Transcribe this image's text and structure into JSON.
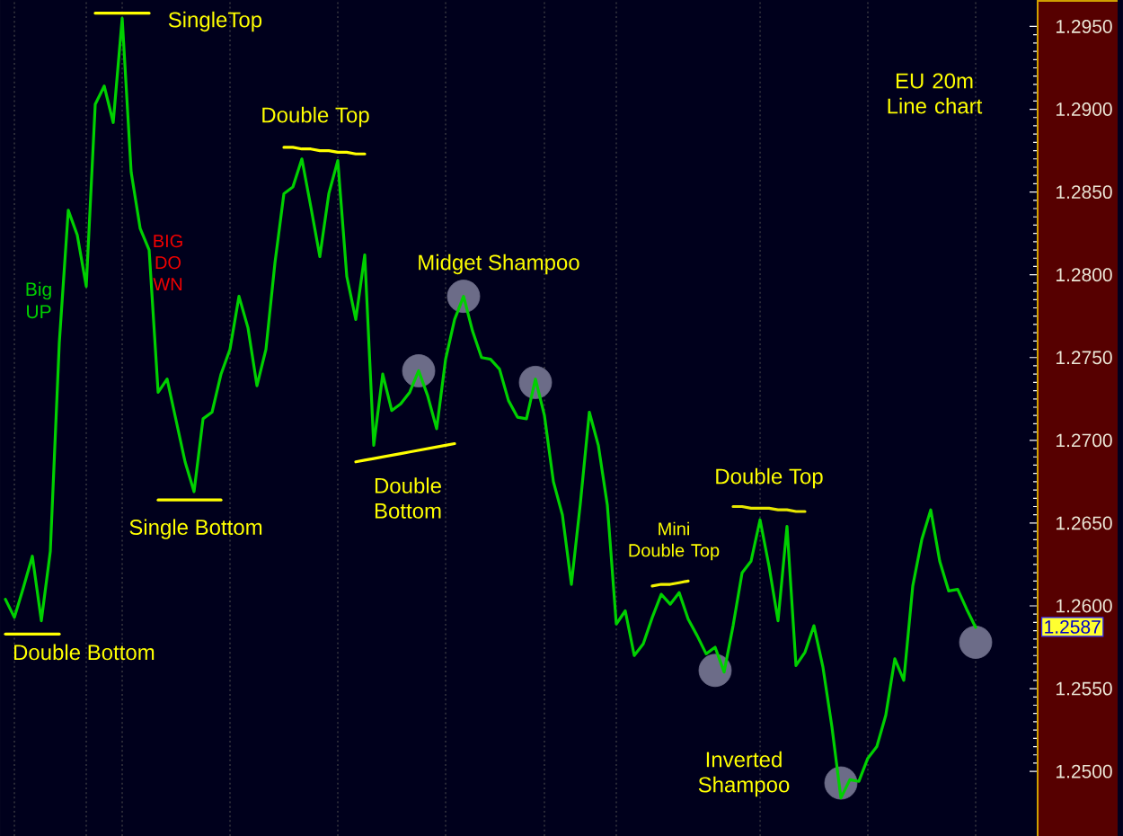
{
  "chart_data": {
    "type": "line",
    "title": "EU 20m Line chart",
    "grid": "x",
    "categories": [
      null,
      null,
      null,
      null,
      null,
      null,
      null,
      null,
      null,
      null,
      null,
      null,
      null,
      null,
      null,
      null,
      null,
      null,
      null,
      null,
      null,
      null,
      null,
      null,
      null,
      null,
      null,
      null,
      null,
      null,
      null,
      null,
      null,
      null,
      null,
      null,
      null,
      null,
      null,
      null,
      null,
      null,
      null,
      null,
      null,
      null,
      null,
      null,
      null,
      null,
      null,
      null,
      null,
      null,
      null,
      null,
      null,
      null,
      null,
      null,
      null,
      null,
      null,
      null,
      null,
      null,
      null,
      null,
      null,
      null,
      null,
      null,
      null,
      null,
      null,
      null,
      null,
      null,
      null,
      null,
      null,
      null,
      null,
      null,
      null,
      null,
      null,
      null,
      null,
      null,
      null,
      null,
      null,
      null,
      null,
      null,
      null,
      null,
      null,
      null,
      null,
      null,
      null,
      null,
      null,
      null,
      null,
      null,
      null
    ],
    "series": [
      {
        "type": "scatter",
        "marker": "circle",
        "color": "#6c6c88",
        "values": [
          null,
          null,
          null,
          null,
          null,
          null,
          null,
          null,
          null,
          null,
          null,
          null,
          null,
          null,
          null,
          null,
          null,
          null,
          null,
          null,
          null,
          null,
          null,
          null,
          null,
          null,
          null,
          null,
          null,
          null,
          null,
          null,
          null,
          null,
          null,
          null,
          null,
          null,
          null,
          null,
          null,
          null,
          null,
          null,
          null,
          null,
          1.2742,
          null,
          null,
          null,
          null,
          1.2787,
          null,
          null,
          null,
          null,
          null,
          null,
          null,
          1.2735,
          null,
          null,
          null,
          null,
          null,
          null,
          null,
          null,
          null,
          null,
          null,
          null,
          null,
          null,
          null,
          null,
          null,
          null,
          null,
          1.2561,
          null,
          null,
          null,
          null,
          null,
          null,
          null,
          null,
          null,
          null,
          null,
          null,
          null,
          1.2493,
          null,
          null,
          null,
          null,
          null,
          null,
          null,
          null,
          null,
          null,
          null,
          null,
          null,
          null,
          1.2578
        ]
      },
      {
        "color": "#00d000",
        "values": [
          1.2604,
          1.2593,
          1.2611,
          1.263,
          1.2591,
          1.2633,
          1.2759,
          1.2839,
          1.2824,
          1.2793,
          1.2903,
          1.2914,
          1.2892,
          1.2955,
          1.2862,
          1.2828,
          1.2815,
          1.2729,
          1.2737,
          1.2712,
          1.2687,
          1.2669,
          1.2713,
          1.2717,
          1.274,
          1.2755,
          1.2787,
          1.2768,
          1.2733,
          1.2755,
          1.2807,
          1.2849,
          1.2853,
          1.287,
          1.2841,
          1.2811,
          1.2849,
          1.2869,
          1.2799,
          1.2773,
          1.2812,
          1.2697,
          1.274,
          1.2718,
          1.2722,
          1.2729,
          1.2742,
          1.2727,
          1.2707,
          1.2749,
          1.2773,
          1.2787,
          1.2766,
          1.275,
          1.2749,
          1.2743,
          1.2724,
          1.2714,
          1.2713,
          1.2737,
          1.2715,
          1.2675,
          1.2655,
          1.2613,
          1.2662,
          1.2717,
          1.2697,
          1.2661,
          1.2589,
          1.2597,
          1.257,
          1.2577,
          1.2593,
          1.2607,
          1.2601,
          1.2608,
          1.2592,
          1.2582,
          1.2571,
          1.2575,
          1.256,
          1.2588,
          1.262,
          1.2627,
          1.2652,
          1.2624,
          1.2591,
          1.2648,
          1.2564,
          1.2572,
          1.2588,
          1.2563,
          1.2527,
          1.2484,
          1.2495,
          1.2494,
          1.2508,
          1.2515,
          1.2534,
          1.2568,
          1.2555,
          1.2612,
          1.264,
          1.2658,
          1.2627,
          1.2609,
          1.261,
          1.2598,
          1.2587
        ]
      },
      {
        "color": "#ffff00",
        "values": [
          1.2583,
          1.2583,
          1.2583,
          1.2583,
          1.2583,
          1.2583,
          1.2583,
          null,
          null,
          null,
          null,
          null,
          null,
          null,
          null,
          null,
          null,
          null,
          null,
          null,
          null,
          null,
          null,
          null,
          null,
          null,
          null,
          null,
          null,
          null,
          null,
          null,
          null,
          null,
          null,
          null,
          null,
          null,
          null,
          null,
          null,
          null,
          null,
          null,
          null,
          null,
          null,
          null,
          null,
          null,
          null,
          null,
          null,
          null,
          null,
          null,
          null,
          null,
          null,
          null,
          null,
          null,
          null,
          null,
          null,
          null,
          null,
          null,
          null,
          null,
          null,
          null,
          null,
          null,
          null,
          null,
          null,
          null,
          null,
          null,
          null,
          null,
          null,
          null,
          null,
          null,
          null,
          null,
          null,
          null,
          null,
          null,
          null,
          null,
          null,
          null,
          null,
          null,
          null,
          null,
          null,
          null,
          null,
          null,
          null,
          null,
          null,
          null,
          null
        ]
      },
      {
        "color": "#ffff00",
        "values": [
          null,
          null,
          null,
          null,
          null,
          null,
          null,
          null,
          null,
          null,
          1.2958,
          1.2958,
          1.2958,
          1.2958,
          1.2958,
          1.2958,
          1.2958,
          null,
          null,
          null,
          null,
          null,
          null,
          null,
          null,
          null,
          null,
          null,
          null,
          null,
          null,
          null,
          null,
          null,
          null,
          null,
          null,
          null,
          null,
          null,
          null,
          null,
          null,
          null,
          null,
          null,
          null,
          null,
          null,
          null,
          null,
          null,
          null,
          null,
          null,
          null,
          null,
          null,
          null,
          null,
          null,
          null,
          null,
          null,
          null,
          null,
          null,
          null,
          null,
          null,
          null,
          null,
          null,
          null,
          null,
          null,
          null,
          null,
          null,
          null,
          null,
          null,
          null,
          null,
          null,
          null,
          null,
          null,
          null,
          null,
          null,
          null,
          null,
          null,
          null,
          null,
          null,
          null,
          null,
          null,
          null,
          null,
          null,
          null,
          null,
          null,
          null,
          null,
          null
        ]
      },
      {
        "color": "#ffff00",
        "values": [
          null,
          null,
          null,
          null,
          null,
          null,
          null,
          null,
          null,
          null,
          null,
          null,
          null,
          null,
          null,
          null,
          null,
          1.2664,
          1.2664,
          1.2664,
          1.2664,
          1.2664,
          1.2664,
          1.2664,
          1.2664,
          null,
          null,
          null,
          null,
          null,
          null,
          null,
          null,
          null,
          null,
          null,
          null,
          null,
          null,
          null,
          null,
          null,
          null,
          null,
          null,
          null,
          null,
          null,
          null,
          null,
          null,
          null,
          null,
          null,
          null,
          null,
          null,
          null,
          null,
          null,
          null,
          null,
          null,
          null,
          null,
          null,
          null,
          null,
          null,
          null,
          null,
          null,
          null,
          null,
          null,
          null,
          null,
          null,
          null,
          null,
          null,
          null,
          null,
          null,
          null,
          null,
          null,
          null,
          null,
          null,
          null,
          null,
          null,
          null,
          null,
          null,
          null,
          null,
          null,
          null,
          null,
          null,
          null,
          null,
          null,
          null,
          null,
          null,
          null
        ]
      },
      {
        "color": "#ffff00",
        "values": [
          null,
          null,
          null,
          null,
          null,
          null,
          null,
          null,
          null,
          null,
          null,
          null,
          null,
          null,
          null,
          null,
          null,
          null,
          null,
          null,
          null,
          null,
          null,
          null,
          null,
          null,
          null,
          null,
          null,
          null,
          null,
          1.2877,
          1.2877,
          1.2876,
          1.2876,
          1.2875,
          1.2875,
          1.2874,
          1.2874,
          1.2873,
          1.2873,
          null,
          null,
          null,
          null,
          null,
          null,
          null,
          null,
          null,
          null,
          null,
          null,
          null,
          null,
          null,
          null,
          null,
          null,
          null,
          null,
          null,
          null,
          null,
          null,
          null,
          null,
          null,
          null,
          null,
          null,
          null,
          null,
          null,
          null,
          null,
          null,
          null,
          null,
          null,
          null,
          null,
          null,
          null,
          null,
          null,
          null,
          null,
          null,
          null,
          null,
          null,
          null,
          null,
          null,
          null,
          null,
          null,
          null,
          null,
          null,
          null,
          null,
          null,
          null,
          null,
          null,
          null,
          null
        ]
      },
      {
        "color": "#ffff00",
        "values": [
          null,
          null,
          null,
          null,
          null,
          null,
          null,
          null,
          null,
          null,
          null,
          null,
          null,
          null,
          null,
          null,
          null,
          null,
          null,
          null,
          null,
          null,
          null,
          null,
          null,
          null,
          null,
          null,
          null,
          null,
          null,
          null,
          null,
          null,
          null,
          null,
          null,
          null,
          null,
          1.2687,
          1.2688,
          1.2689,
          1.269,
          1.2691,
          1.2692,
          1.2693,
          1.2694,
          1.2695,
          1.2696,
          1.2697,
          1.2698,
          null,
          null,
          null,
          null,
          null,
          null,
          null,
          null,
          null,
          null,
          null,
          null,
          null,
          null,
          null,
          null,
          null,
          null,
          null,
          null,
          null,
          null,
          null,
          null,
          null,
          null,
          null,
          null,
          null,
          null,
          null,
          null,
          null,
          null,
          null,
          null,
          null,
          null,
          null,
          null,
          null,
          null,
          null,
          null,
          null,
          null,
          null,
          null,
          null,
          null,
          null,
          null,
          null,
          null,
          null,
          null,
          null,
          null
        ]
      },
      {
        "color": "#f2f200",
        "values": [
          null,
          null,
          null,
          null,
          null,
          null,
          null,
          null,
          null,
          null,
          null,
          null,
          null,
          null,
          null,
          null,
          null,
          null,
          null,
          null,
          null,
          null,
          null,
          null,
          null,
          null,
          null,
          null,
          null,
          null,
          null,
          null,
          null,
          null,
          null,
          null,
          null,
          null,
          null,
          null,
          null,
          null,
          null,
          null,
          null,
          null,
          null,
          null,
          null,
          null,
          null,
          null,
          null,
          null,
          null,
          null,
          null,
          null,
          null,
          null,
          null,
          null,
          null,
          null,
          null,
          null,
          null,
          null,
          null,
          null,
          null,
          null,
          1.2612,
          1.2613,
          1.2613,
          1.2614,
          1.2615,
          null,
          null,
          null,
          null,
          null,
          null,
          null,
          null,
          null,
          null,
          null,
          null,
          null,
          null,
          null,
          null,
          null,
          null,
          null,
          null,
          null,
          null,
          null,
          null,
          null,
          null,
          null,
          null,
          null,
          null,
          null,
          null
        ]
      },
      {
        "color": "#e6e600",
        "values": [
          null,
          null,
          null,
          null,
          null,
          null,
          null,
          null,
          null,
          null,
          null,
          null,
          null,
          null,
          null,
          null,
          null,
          null,
          null,
          null,
          null,
          null,
          null,
          null,
          null,
          null,
          null,
          null,
          null,
          null,
          null,
          null,
          null,
          null,
          null,
          null,
          null,
          null,
          null,
          null,
          null,
          null,
          null,
          null,
          null,
          null,
          null,
          null,
          null,
          null,
          null,
          null,
          null,
          null,
          null,
          null,
          null,
          null,
          null,
          null,
          null,
          null,
          null,
          null,
          null,
          null,
          null,
          null,
          null,
          null,
          null,
          null,
          null,
          null,
          null,
          null,
          null,
          null,
          null,
          null,
          null,
          1.266,
          1.266,
          1.2659,
          1.2659,
          1.2659,
          1.2658,
          1.2658,
          1.2657,
          1.2657,
          null,
          null,
          null,
          null,
          null,
          null,
          null,
          null,
          null,
          null,
          null,
          null,
          null,
          null,
          null,
          null,
          null,
          null,
          null
        ]
      }
    ],
    "ylim": [
      1.2461,
      1.2966
    ],
    "yticks": [
      {
        "value": 1.25,
        "label": "1.2500"
      },
      {
        "value": 1.255,
        "label": "1.2550"
      },
      {
        "value": 1.26,
        "label": "1.2600"
      },
      {
        "value": 1.265,
        "label": "1.2650"
      },
      {
        "value": 1.27,
        "label": "1.2700"
      },
      {
        "value": 1.275,
        "label": "1.2750"
      },
      {
        "value": 1.28,
        "label": "1.2800"
      },
      {
        "value": 1.285,
        "label": "1.2850"
      },
      {
        "value": 1.29,
        "label": "1.2900"
      },
      {
        "value": 1.295,
        "label": "1.2950"
      }
    ],
    "annotations": [
      "SingleTop",
      "Big UP",
      "BIG DO WN",
      "Double Top",
      "Midget Shampoo",
      "Double Bottom",
      "Single Bottom",
      "Double Bottom",
      "Mini Double Top",
      "Double Top",
      "Inverted Shampoo",
      "1.2587"
    ]
  }
}
